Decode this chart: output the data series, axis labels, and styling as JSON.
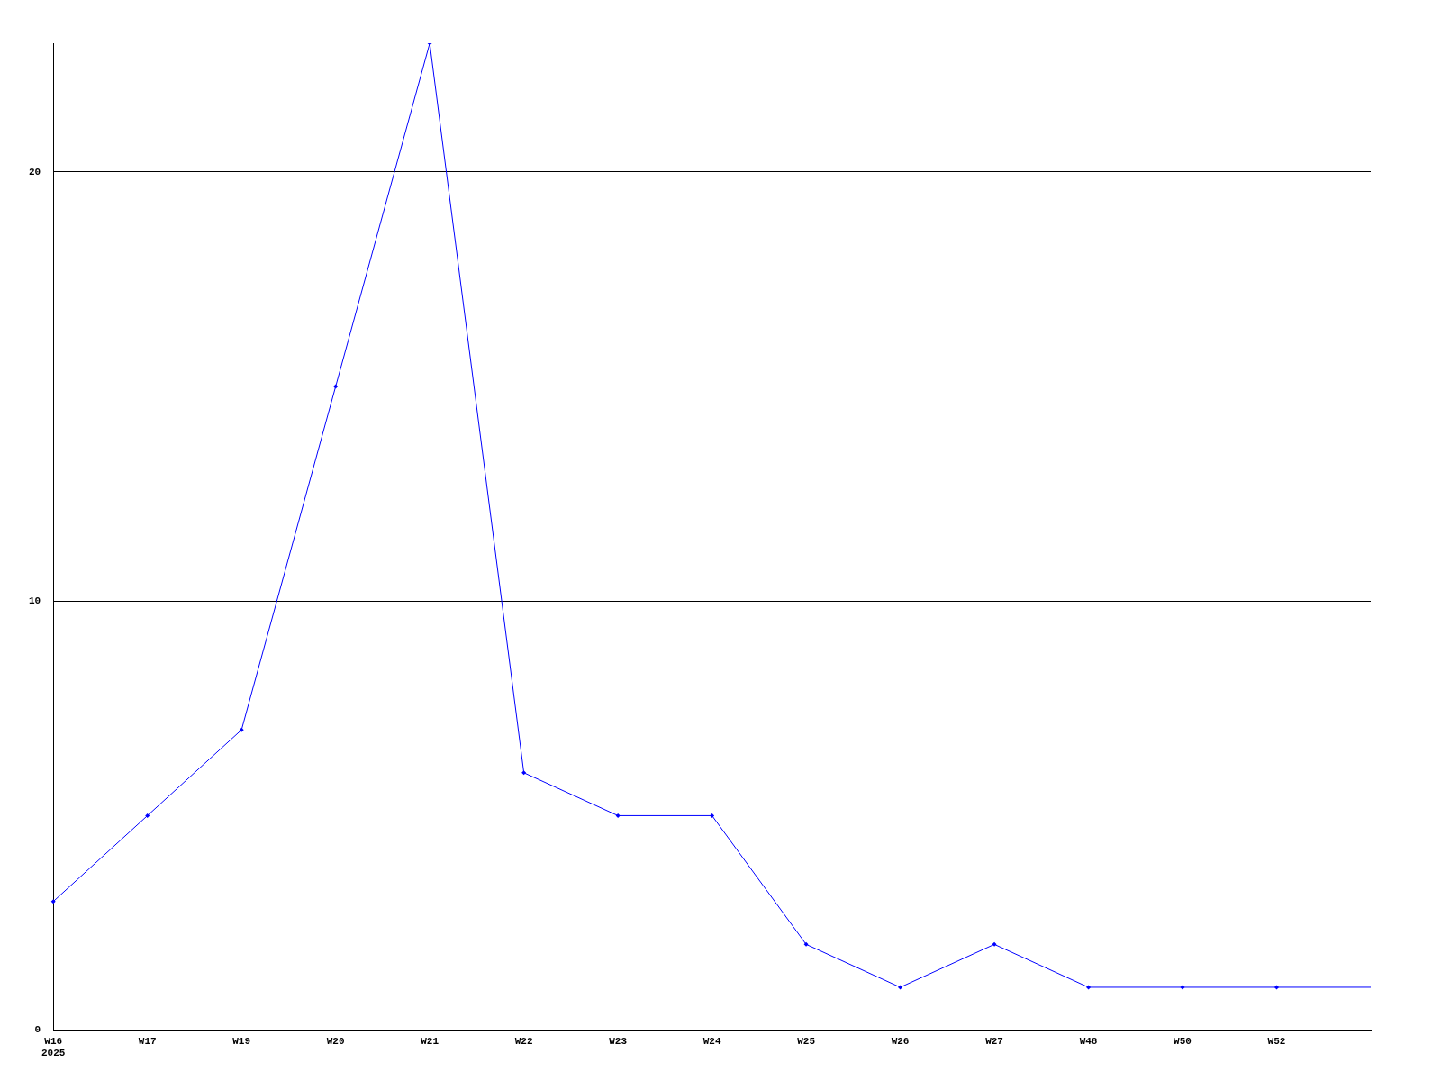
{
  "chart_data": {
    "type": "line",
    "categories": [
      "W16\n2025",
      "W17",
      "W19",
      "W20",
      "W21",
      "W22",
      "W23",
      "W24",
      "W25",
      "W26",
      "W27",
      "W48",
      "W50",
      "W52",
      null
    ],
    "series": [
      {
        "color": "#0000ff",
        "values": [
          3,
          5,
          7,
          15,
          23,
          6,
          5,
          5,
          2,
          1,
          2,
          1,
          1,
          1,
          1
        ]
      }
    ],
    "ylim": [
      0,
      23
    ],
    "yticks": [
      0,
      10,
      20
    ],
    "grid": "y",
    "legend": false,
    "marker": "diamond",
    "line_style": "solid"
  }
}
